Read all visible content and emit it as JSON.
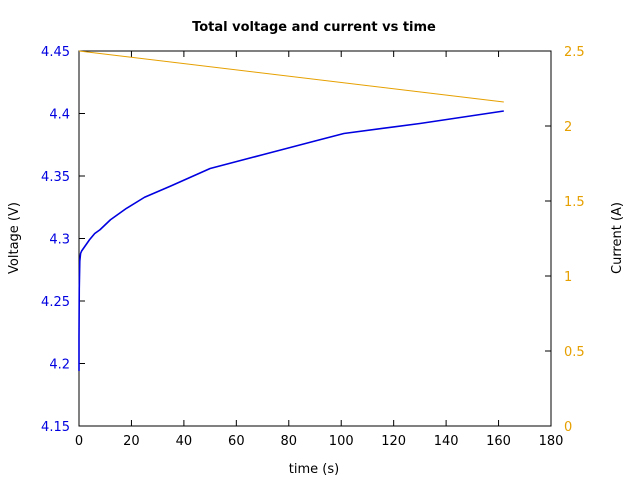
{
  "chart_data": {
    "type": "line",
    "title": "Total voltage and current vs time",
    "xlabel": "time (s)",
    "ylabel": "Voltage (V)",
    "y2label": "Current (A)",
    "xlim": [
      0,
      180
    ],
    "ylim": [
      4.15,
      4.45
    ],
    "y2lim": [
      0,
      2.5
    ],
    "x_ticks": [
      "0",
      "20",
      "40",
      "60",
      "80",
      "100",
      "120",
      "140",
      "160",
      "180"
    ],
    "y_ticks": [
      "4.15",
      "4.2",
      "4.25",
      "4.3",
      "4.35",
      "4.4",
      "4.45"
    ],
    "y2_ticks": [
      "0",
      "0.5",
      "1",
      "1.5",
      "2",
      "2.5"
    ],
    "grid": false,
    "colors": {
      "voltage": "#0000e0",
      "current": "#e6a000",
      "left_axis_text": "#0000e0",
      "right_axis_text": "#e6a000"
    },
    "series": [
      {
        "axis": "left",
        "color": "#0000e0",
        "x": [
          0,
          0,
          0.1,
          0.3,
          0.6,
          1,
          2,
          3,
          4,
          6,
          8,
          12,
          18,
          25,
          35,
          50,
          70,
          90,
          101,
          130,
          162
        ],
        "y": [
          4.194,
          4.22,
          4.26,
          4.282,
          4.288,
          4.29,
          4.293,
          4.296,
          4.299,
          4.304,
          4.307,
          4.315,
          4.324,
          4.333,
          4.342,
          4.356,
          4.367,
          4.378,
          4.384,
          4.392,
          4.402
        ]
      },
      {
        "axis": "right",
        "color": "#e6a000",
        "x": [
          0,
          162
        ],
        "y": [
          2.5,
          2.16
        ]
      }
    ]
  }
}
